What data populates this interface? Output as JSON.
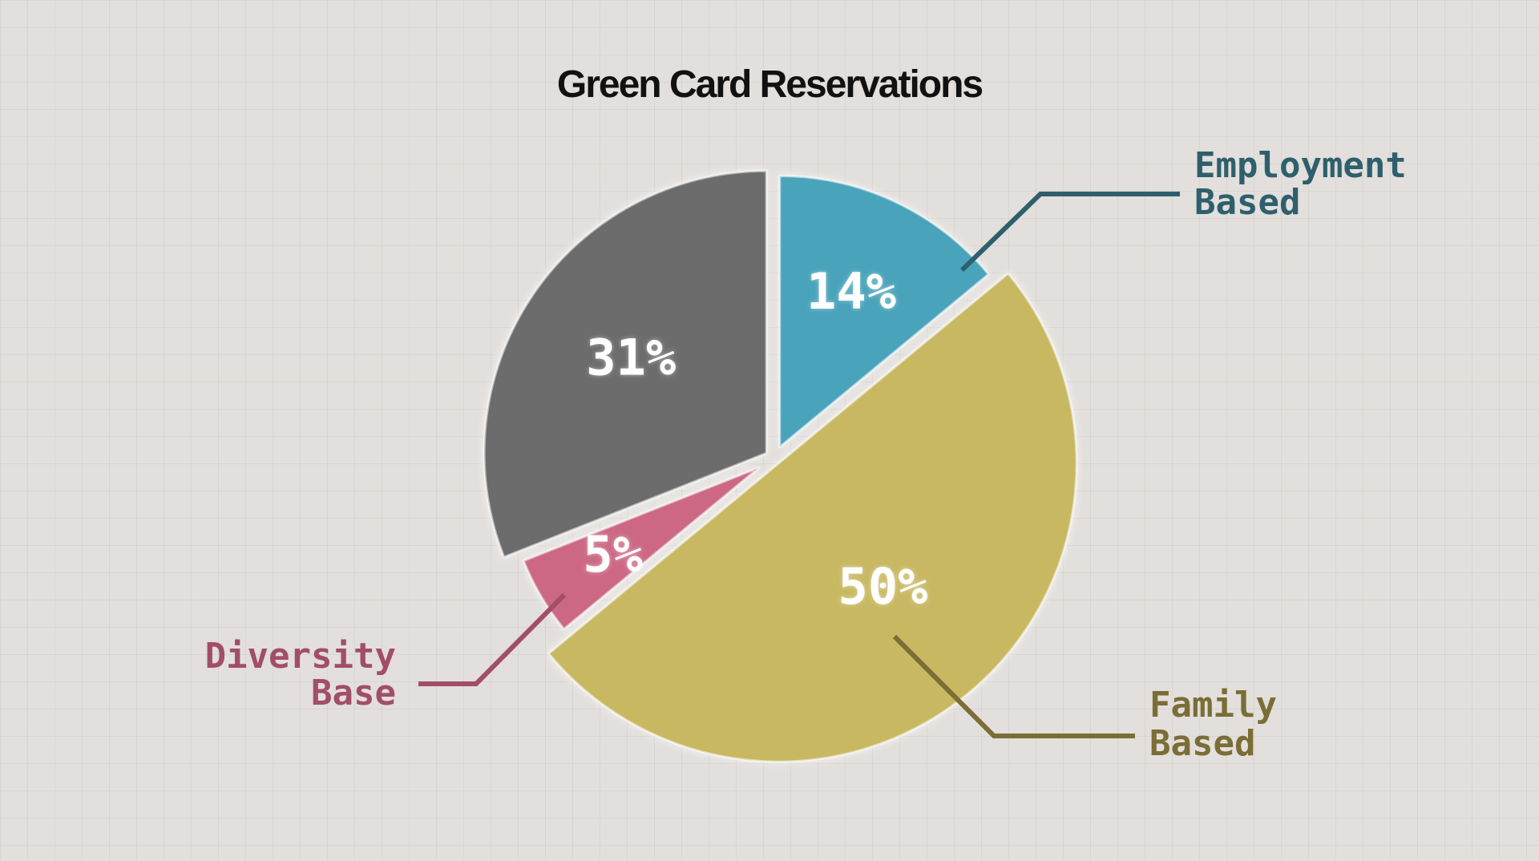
{
  "chart_data": {
    "type": "pie",
    "title": "Green Card Reservations",
    "categories": [
      "Employment Based",
      "Family Based",
      "Diversity Base",
      ""
    ],
    "values": [
      14,
      50,
      5,
      31
    ],
    "value_labels": [
      "14%",
      "50%",
      "5%",
      "31%"
    ],
    "legend_lines": [
      [
        "Employment",
        "Based"
      ],
      [
        "Family",
        "Based"
      ],
      [
        "Diversity",
        "Base"
      ],
      []
    ],
    "colors": [
      "#4aa3ba",
      "#c8b862",
      "#cc6884",
      "#6c6c6c"
    ],
    "label_colors": [
      "#2e5f6c",
      "#7a6d36",
      "#a24e67",
      ""
    ],
    "start_angle_deg": 0,
    "direction": "clockwise"
  }
}
